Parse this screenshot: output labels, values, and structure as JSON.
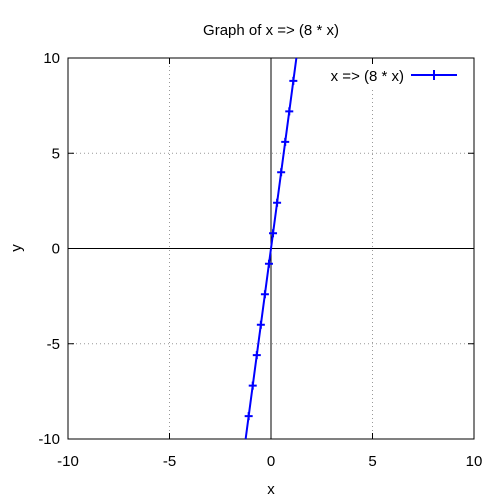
{
  "chart_data": {
    "type": "line",
    "title": "Graph of x => (8 * x)",
    "xlabel": "x",
    "ylabel": "y",
    "xlim": [
      -10,
      10
    ],
    "ylim": [
      -10,
      10
    ],
    "xticks": [
      -10,
      -5,
      0,
      5,
      10
    ],
    "yticks": [
      -10,
      -5,
      0,
      5,
      10
    ],
    "grid": true,
    "legend_position": "top-right",
    "series": [
      {
        "name": "x => (8 * x)",
        "color": "#0000ff",
        "marker": "plus",
        "x": [
          -1.25,
          -1.1,
          -0.9,
          -0.7,
          -0.5,
          -0.3,
          -0.1,
          0.1,
          0.3,
          0.5,
          0.7,
          0.9,
          1.1,
          1.25
        ],
        "y": [
          -10,
          -8.8,
          -7.2,
          -5.6,
          -4.0,
          -2.4,
          -0.8,
          0.8,
          2.4,
          4.0,
          5.6,
          7.2,
          8.8,
          10
        ],
        "marker_x": [
          -1.1,
          -0.9,
          -0.7,
          -0.5,
          -0.3,
          -0.1,
          0.1,
          0.3,
          0.5,
          0.7,
          0.9,
          1.1
        ],
        "marker_y": [
          -8.8,
          -7.2,
          -5.6,
          -4.0,
          -2.4,
          -0.8,
          0.8,
          2.4,
          4.0,
          5.6,
          7.2,
          8.8
        ]
      }
    ]
  }
}
